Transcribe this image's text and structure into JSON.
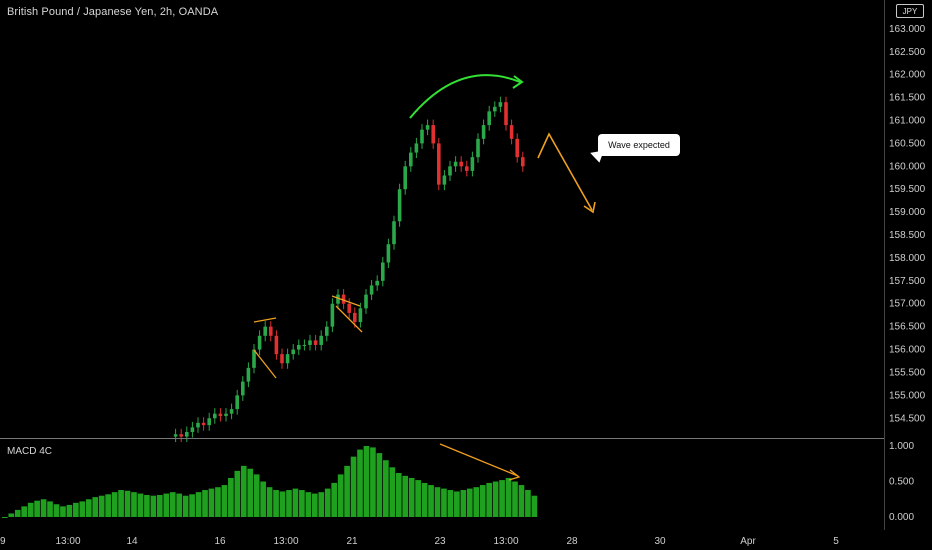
{
  "header": {
    "title": "British Pound / Japanese Yen, 2h, OANDA",
    "currency_badge": "JPY"
  },
  "annotation": {
    "callout_text": "Wave expected"
  },
  "macd": {
    "label": "MACD 4C",
    "ticks": [
      "1.000",
      "0.500",
      "0.000"
    ],
    "tick_values": [
      1.0,
      0.5,
      0.0
    ]
  },
  "colors": {
    "up": "#2aa84a",
    "down": "#e03030",
    "hist": "#1fa01f",
    "arrow_green": "#33e033",
    "arrow_orange": "#f0a020",
    "callout_bg": "#ffffff"
  },
  "chart_data": {
    "type": "candlestick",
    "price_axis": {
      "labels": [
        "163.000",
        "162.500",
        "162.000",
        "161.500",
        "161.000",
        "160.500",
        "160.000",
        "159.500",
        "159.000",
        "158.500",
        "158.000",
        "157.500",
        "157.000",
        "156.500",
        "156.000",
        "155.500",
        "155.000",
        "154.500"
      ],
      "values": [
        163.0,
        162.5,
        162.0,
        161.5,
        161.0,
        160.5,
        160.0,
        159.5,
        159.0,
        158.5,
        158.0,
        157.5,
        157.0,
        156.5,
        156.0,
        155.5,
        155.0,
        154.5
      ],
      "range": [
        154.2,
        163.5
      ]
    },
    "time_axis": {
      "labels": [
        "9",
        "13:00",
        "14",
        "16",
        "13:00",
        "21",
        "23",
        "13:00",
        "28",
        "30",
        "Apr",
        "5"
      ]
    },
    "price_series": [
      154.1,
      154.15,
      154.1,
      154.2,
      154.3,
      154.4,
      154.35,
      154.5,
      154.6,
      154.55,
      154.6,
      154.7,
      155.0,
      155.3,
      155.6,
      156.0,
      156.3,
      156.5,
      156.3,
      155.9,
      155.7,
      155.9,
      156.0,
      156.1,
      156.1,
      156.2,
      156.1,
      156.3,
      156.5,
      157.0,
      157.2,
      157.0,
      156.8,
      156.6,
      156.9,
      157.2,
      157.4,
      157.5,
      157.9,
      158.3,
      158.8,
      159.5,
      160.0,
      160.3,
      160.5,
      160.8,
      160.9,
      160.5,
      159.6,
      159.8,
      160.0,
      160.1,
      160.0,
      159.9,
      160.2,
      160.6,
      160.9,
      161.2,
      161.3,
      161.4,
      160.9,
      160.6,
      160.2,
      160.0
    ],
    "macd_histogram": [
      0.0,
      0.05,
      0.1,
      0.15,
      0.2,
      0.23,
      0.25,
      0.22,
      0.18,
      0.15,
      0.17,
      0.2,
      0.22,
      0.25,
      0.28,
      0.3,
      0.32,
      0.35,
      0.38,
      0.37,
      0.35,
      0.33,
      0.31,
      0.3,
      0.31,
      0.33,
      0.35,
      0.33,
      0.3,
      0.32,
      0.35,
      0.38,
      0.4,
      0.42,
      0.45,
      0.55,
      0.65,
      0.72,
      0.68,
      0.6,
      0.5,
      0.42,
      0.38,
      0.36,
      0.38,
      0.4,
      0.38,
      0.35,
      0.33,
      0.35,
      0.4,
      0.48,
      0.6,
      0.72,
      0.85,
      0.95,
      1.0,
      0.98,
      0.9,
      0.8,
      0.7,
      0.62,
      0.58,
      0.55,
      0.52,
      0.48,
      0.45,
      0.42,
      0.4,
      0.38,
      0.36,
      0.38,
      0.4,
      0.42,
      0.45,
      0.48,
      0.5,
      0.52,
      0.55,
      0.5,
      0.45,
      0.38,
      0.3
    ]
  }
}
